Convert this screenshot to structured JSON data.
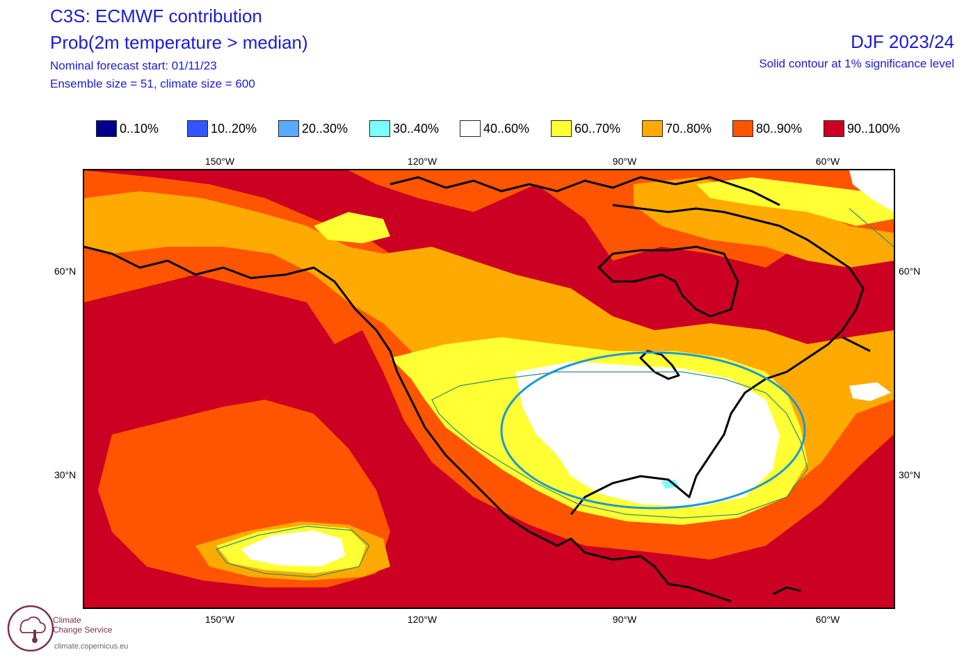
{
  "header": {
    "title_line1": "C3S: ECMWF contribution",
    "title_line2": "Prob(2m temperature > median)",
    "forecast_start": "Nominal forecast start: 01/11/23",
    "ensemble_info": "Ensemble size = 51, climate size = 600",
    "season": "DJF 2023/24",
    "significance_note": "Solid contour at 1% significance level"
  },
  "legend": [
    {
      "label": "0..10%",
      "color": "#00008f"
    },
    {
      "label": "10..20%",
      "color": "#3355ff"
    },
    {
      "label": "20..30%",
      "color": "#5aaaff"
    },
    {
      "label": "30..40%",
      "color": "#7affff"
    },
    {
      "label": "40..60%",
      "color": "#ffffff"
    },
    {
      "label": "60..70%",
      "color": "#ffff33"
    },
    {
      "label": "70..80%",
      "color": "#ffaa00"
    },
    {
      "label": "80..90%",
      "color": "#ff5500"
    },
    {
      "label": "90..100%",
      "color": "#cc0022"
    }
  ],
  "axes": {
    "lon_top": [
      "150°W",
      "120°W",
      "90°W",
      "60°W"
    ],
    "lon_bottom": [
      "150°W",
      "120°W",
      "90°W",
      "60°W"
    ],
    "lat_left": [
      "60°N",
      "30°N"
    ],
    "lat_right": [
      "60°N",
      "30°N"
    ]
  },
  "annotation": {
    "shape": "ellipse",
    "color": "#1a99d6",
    "description_icon": "highlight-ellipse"
  },
  "logo": {
    "name_line1": "Climate",
    "name_line2": "Change Service",
    "url": "climate.copernicus.eu",
    "icon": "thermometer-cloud-icon"
  }
}
